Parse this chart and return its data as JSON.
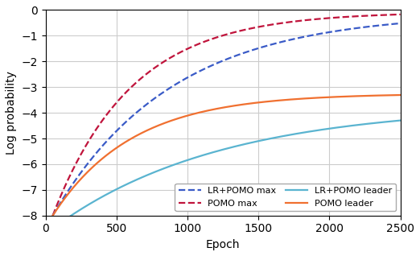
{
  "title": "",
  "xlabel": "Epoch",
  "ylabel": "Log probability",
  "xlim": [
    0,
    2500
  ],
  "ylim": [
    -8,
    0
  ],
  "yticks": [
    0,
    -1,
    -2,
    -3,
    -4,
    -5,
    -6,
    -7,
    -8
  ],
  "xticks": [
    0,
    500,
    1000,
    1500,
    2000,
    2500
  ],
  "grid": true,
  "curves": {
    "pomo_max": {
      "color": "#c0143c",
      "linestyle": "dashed",
      "label": "POMO max",
      "y_asym": -0.075,
      "y_start": -8.0,
      "rate": 0.0018,
      "start_epoch": 50
    },
    "lr_pomo_max": {
      "color": "#3a5bc7",
      "linestyle": "dashed",
      "label": "LR+POMO max",
      "y_asym": -0.1,
      "y_start": -8.0,
      "rate": 0.0012,
      "start_epoch": 50
    },
    "pomo_leader": {
      "color": "#f07030",
      "linestyle": "solid",
      "label": "POMO leader",
      "y_asym": -3.25,
      "y_start": -8.0,
      "rate": 0.0018,
      "start_epoch": 50
    },
    "lr_pomo_leader": {
      "color": "#5ab4d0",
      "linestyle": "solid",
      "label": "LR+POMO leader",
      "y_asym": -3.7,
      "y_start": -8.5,
      "rate": 0.00085,
      "start_epoch": 50
    }
  },
  "legend_order": [
    "lr_pomo_max",
    "pomo_max",
    "lr_pomo_leader",
    "pomo_leader"
  ],
  "legend_loc": "lower right",
  "figsize": [
    5.22,
    3.18
  ],
  "dpi": 100
}
